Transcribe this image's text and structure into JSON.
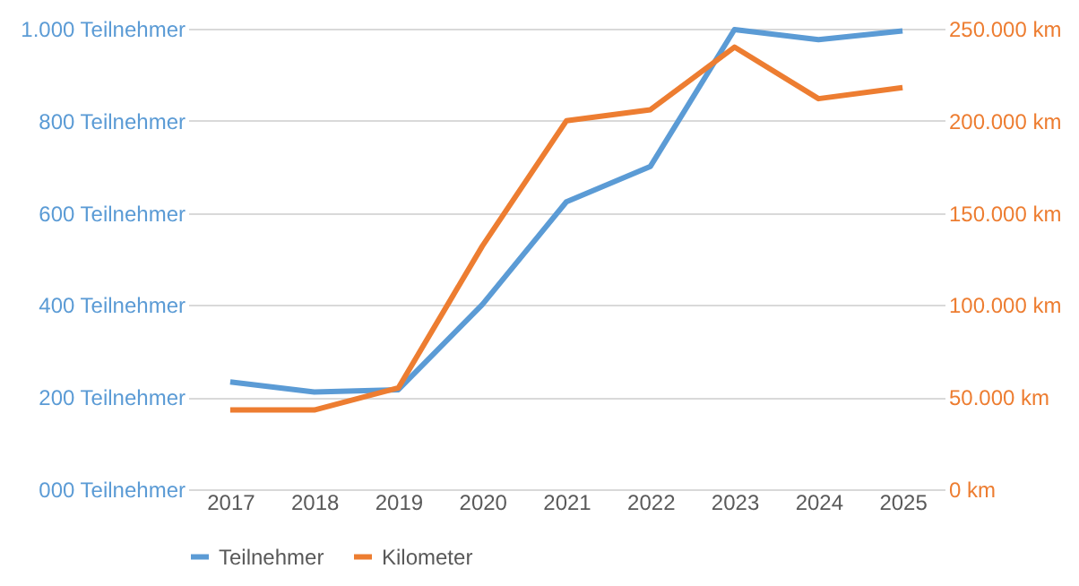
{
  "chart_data": {
    "type": "line",
    "categories": [
      "2017",
      "2018",
      "2019",
      "2020",
      "2021",
      "2022",
      "2023",
      "2024",
      "2025"
    ],
    "series": [
      {
        "name": "Teilnehmer",
        "color": "#5b9bd5",
        "values": [
          233,
          211,
          216,
          401,
          624,
          701,
          998,
          976,
          995
        ]
      },
      {
        "name": "Kilometer",
        "color": "#ed7d31",
        "axis": "y2",
        "values": [
          43000,
          43000,
          55000,
          132000,
          200000,
          206000,
          240000,
          212000,
          218000
        ]
      }
    ],
    "ylim": [
      0,
      1000
    ],
    "yticks": [
      {
        "value": 0,
        "label": "000 Teilnehmer"
      },
      {
        "value": 200,
        "label": "200 Teilnehmer"
      },
      {
        "value": 400,
        "label": "400 Teilnehmer"
      },
      {
        "value": 600,
        "label": "600 Teilnehmer"
      },
      {
        "value": 800,
        "label": "800 Teilnehmer"
      },
      {
        "value": 1000,
        "label": "1.000 Teilnehmer"
      }
    ],
    "y2lim": [
      0,
      250000
    ],
    "y2ticks": [
      {
        "value": 0,
        "label": "0 km"
      },
      {
        "value": 50000,
        "label": "50.000 km"
      },
      {
        "value": 100000,
        "label": "100.000 km"
      },
      {
        "value": 150000,
        "label": "150.000 km"
      },
      {
        "value": 200000,
        "label": "200.000 km"
      },
      {
        "value": 250000,
        "label": "250.000 km"
      }
    ],
    "grid": "y",
    "legend": "bottom",
    "line_style": "solid",
    "marker": "none"
  }
}
